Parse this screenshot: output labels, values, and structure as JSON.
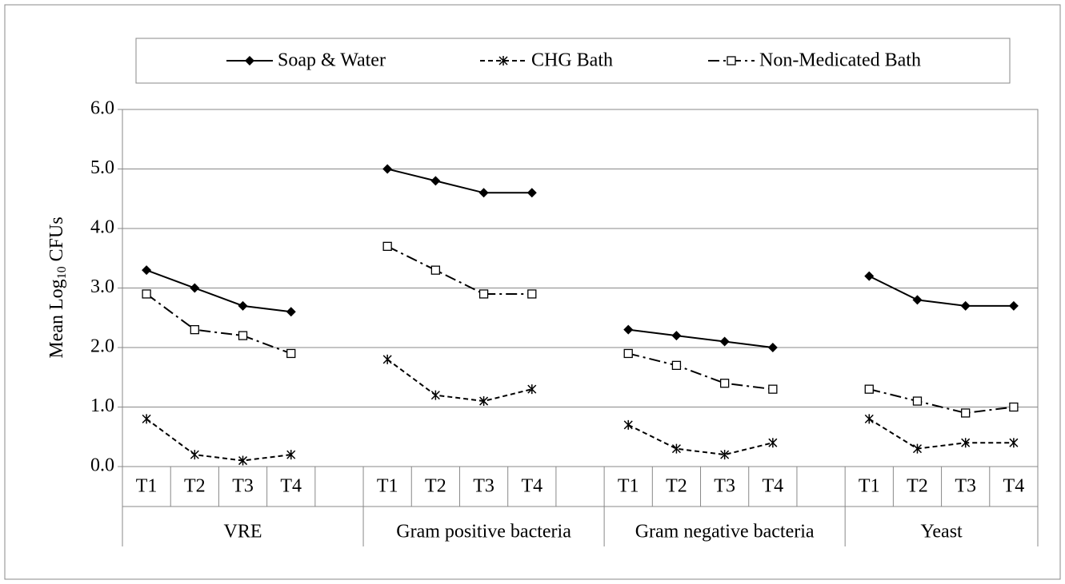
{
  "chart_data": {
    "type": "line",
    "y_label": {
      "text": "Mean Log",
      "sub": "10",
      "suffix": " CFUs"
    },
    "categories": [
      "T1",
      "T2",
      "T3",
      "T4",
      null,
      "T1",
      "T2",
      "T3",
      "T4",
      null,
      "T1",
      "T2",
      "T3",
      "T4",
      null,
      "T1",
      "T2",
      "T3",
      "T4"
    ],
    "groups": [
      "VRE",
      "Gram positive bacteria",
      "Gram negative bacteria",
      "Yeast"
    ],
    "series": [
      {
        "name": "Soap & Water",
        "color": "#000000",
        "line_style": "solid",
        "marker": "diamond",
        "values": [
          3.3,
          3.0,
          2.7,
          2.6,
          null,
          5.0,
          4.8,
          4.6,
          4.6,
          null,
          2.3,
          2.2,
          2.1,
          2.0,
          null,
          3.2,
          2.8,
          2.7,
          2.7
        ]
      },
      {
        "name": "CHG Bath",
        "color": "#000000",
        "line_style": "dashed",
        "marker": "asterisk",
        "values": [
          0.8,
          0.2,
          0.1,
          0.2,
          null,
          1.8,
          1.2,
          1.1,
          1.3,
          null,
          0.7,
          0.3,
          0.2,
          0.4,
          null,
          0.8,
          0.3,
          0.4,
          0.4
        ]
      },
      {
        "name": "Non-Medicated Bath",
        "color": "#000000",
        "line_style": "dashdot",
        "marker": "square",
        "values": [
          2.9,
          2.3,
          2.2,
          1.9,
          null,
          3.7,
          3.3,
          2.9,
          2.9,
          null,
          1.9,
          1.7,
          1.4,
          1.3,
          null,
          1.3,
          1.1,
          0.9,
          1.0
        ]
      }
    ],
    "ylim": [
      0,
      6
    ],
    "yticks": [
      {
        "value": 0,
        "label": "0.0"
      },
      {
        "value": 1,
        "label": "1.0"
      },
      {
        "value": 2,
        "label": "2.0"
      },
      {
        "value": 3,
        "label": "3.0"
      },
      {
        "value": 4,
        "label": "4.0"
      },
      {
        "value": 5,
        "label": "5.0"
      },
      {
        "value": 6,
        "label": "6.0"
      }
    ],
    "grid": true,
    "legend": "top"
  }
}
